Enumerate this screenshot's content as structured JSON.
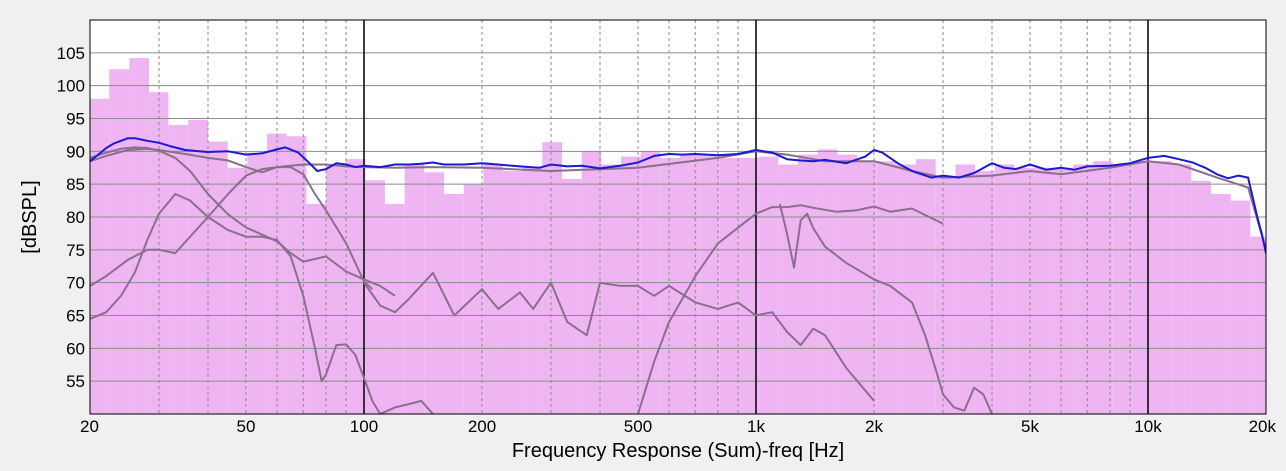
{
  "chart_data": {
    "type": "bar",
    "title": "",
    "xlabel": "Frequency Response (Sum)-freq [Hz]",
    "ylabel": "[dBSPL]",
    "xscale": "log",
    "xlim": [
      20,
      20000
    ],
    "ylim": [
      50,
      110
    ],
    "grid": true,
    "legend": "none",
    "x_ticks": [
      {
        "value": 20,
        "label": "20"
      },
      {
        "value": 50,
        "label": "50"
      },
      {
        "value": 100,
        "label": "100"
      },
      {
        "value": 200,
        "label": "200"
      },
      {
        "value": 500,
        "label": "500"
      },
      {
        "value": 1000,
        "label": "1k"
      },
      {
        "value": 2000,
        "label": "2k"
      },
      {
        "value": 5000,
        "label": "5k"
      },
      {
        "value": 10000,
        "label": "10k"
      },
      {
        "value": 20000,
        "label": "20k"
      }
    ],
    "y_ticks": [
      {
        "value": 55,
        "label": "55"
      },
      {
        "value": 60,
        "label": "60"
      },
      {
        "value": 65,
        "label": "65"
      },
      {
        "value": 70,
        "label": "70"
      },
      {
        "value": 75,
        "label": "75"
      },
      {
        "value": 80,
        "label": "80"
      },
      {
        "value": 85,
        "label": "85"
      },
      {
        "value": 90,
        "label": "90"
      },
      {
        "value": 95,
        "label": "95"
      },
      {
        "value": 100,
        "label": "100"
      },
      {
        "value": 105,
        "label": "105"
      }
    ],
    "colors": {
      "bars": "#efb5f3",
      "sum_line": "#1a1ad0",
      "component_lines": "#8a6f8c",
      "grid": "#8c8c8c",
      "decade_grid": "#000000",
      "plot_bg": "#ffffff",
      "frame_bg": "#f0f0f0"
    },
    "bars": {
      "x": [
        20,
        22.4,
        25.2,
        28.3,
        31.7,
        35.6,
        40,
        44.9,
        50.4,
        56.6,
        63.5,
        71.3,
        80,
        89.8,
        100.8,
        113.1,
        127,
        142.5,
        160,
        179.6,
        201.6,
        226.3,
        254,
        285.1,
        320,
        359.2,
        403.2,
        452.5,
        508,
        570.2,
        640,
        718.4,
        806.3,
        905.1,
        1016,
        1140,
        1280,
        1437,
        1613,
        1810,
        2032,
        2281,
        2560,
        2874,
        3226,
        3621,
        4064,
        4562,
        5120,
        5747,
        6451,
        7241,
        8127,
        9123,
        10240,
        11494,
        12902,
        14482,
        16255,
        18246
      ],
      "values": [
        98,
        102.5,
        104.2,
        99,
        94,
        94.8,
        91.5,
        87.5,
        89.8,
        92.7,
        92.3,
        82,
        88,
        88.8,
        85.6,
        82,
        88,
        86.8,
        83.5,
        85,
        88,
        87,
        87.7,
        91.4,
        85.8,
        90,
        88,
        89.2,
        90,
        89,
        89.5,
        89.6,
        89,
        89,
        89.2,
        88,
        89.5,
        90.3,
        89.5,
        88.6,
        88.5,
        88,
        88.8,
        86,
        88,
        87,
        88,
        87.5,
        87.5,
        87.5,
        88,
        88.5,
        88,
        88.5,
        88.5,
        88,
        85.5,
        83.5,
        82.5,
        77
      ]
    },
    "series": [
      {
        "x": [
          20,
          21,
          22,
          23,
          24,
          25,
          26,
          27,
          28,
          30,
          32,
          35,
          38,
          40,
          45,
          50,
          55,
          60,
          63,
          68,
          72,
          76,
          80,
          85,
          90,
          95,
          100,
          110,
          120,
          130,
          140,
          150,
          160,
          180,
          200,
          220,
          250,
          280,
          300,
          330,
          360,
          400,
          450,
          500,
          550,
          600,
          650,
          700,
          800,
          900,
          1000,
          1100,
          1200,
          1300,
          1400,
          1500,
          1700,
          1900,
          2000,
          2100,
          2300,
          2500,
          2800,
          3000,
          3300,
          3600,
          4000,
          4300,
          4600,
          5000,
          5500,
          6000,
          6500,
          7000,
          8000,
          9000,
          10000,
          11000,
          12000,
          13000,
          14000,
          15000,
          16000,
          17000,
          18000,
          18500,
          19000,
          19500,
          20000
        ],
        "values": [
          88.5,
          89.5,
          90.5,
          91.2,
          91.6,
          92,
          92,
          91.8,
          91.6,
          91.3,
          90.8,
          90.2,
          90,
          89.9,
          90,
          89.5,
          89.7,
          90.3,
          90.6,
          89.8,
          88.4,
          87,
          87.3,
          88.2,
          88,
          87.6,
          87.8,
          87.6,
          88,
          88,
          88.1,
          88.3,
          88,
          88,
          88.2,
          88,
          87.7,
          87.5,
          88,
          87.7,
          87.8,
          87.4,
          87.8,
          88.3,
          89.3,
          89.6,
          89.5,
          89.6,
          89.4,
          89.6,
          90.2,
          89.8,
          88.8,
          88.6,
          88.5,
          88.7,
          88.2,
          89.2,
          90.2,
          89.8,
          88.2,
          87,
          86,
          86.3,
          86,
          86.7,
          88.2,
          87.5,
          87.3,
          88,
          87.2,
          87.5,
          87.2,
          87.7,
          87.8,
          88.2,
          89,
          89.3,
          88.8,
          88.3,
          87.5,
          86.5,
          85.9,
          86.3,
          86,
          83,
          80,
          77.5,
          74.5
        ]
      },
      {
        "x": [
          20,
          22,
          25,
          28,
          30,
          35,
          40,
          45,
          50,
          55,
          60,
          70,
          80,
          90,
          100,
          120,
          150,
          200,
          300,
          500,
          800,
          1000,
          1200,
          1500,
          2000,
          2500,
          3000,
          4000,
          5000,
          6000,
          8000,
          10000,
          12000,
          15000,
          18000,
          20000
        ],
        "values": [
          88.5,
          89.3,
          90.2,
          90.4,
          90.2,
          89.6,
          89,
          88.6,
          87.6,
          86.8,
          87.6,
          88,
          88,
          87.7,
          87.6,
          87.5,
          87.6,
          87.5,
          87,
          87.5,
          89,
          90,
          89.5,
          88.5,
          88.5,
          87,
          86,
          86.3,
          87,
          86.5,
          87.5,
          88.5,
          88,
          86,
          84.5,
          75
        ]
      },
      {
        "x": [
          20,
          22,
          24,
          26,
          28,
          30,
          33,
          36,
          40,
          45,
          50,
          55,
          60,
          65,
          70,
          75,
          80,
          90,
          100,
          110,
          120
        ],
        "values": [
          89,
          89.8,
          90.4,
          90.6,
          90.5,
          90.1,
          89,
          87,
          83.5,
          80.4,
          78.4,
          77.3,
          76.3,
          74.5,
          73.2,
          73.6,
          74,
          71.7,
          70.5,
          69.5,
          68
        ]
      },
      {
        "x": [
          20,
          22,
          24,
          26,
          28,
          30,
          33,
          36,
          40,
          45,
          50,
          55,
          60,
          65,
          70,
          75,
          78,
          80,
          85,
          90,
          95,
          100,
          105,
          110
        ],
        "values": [
          64.5,
          65.5,
          68,
          71.5,
          76.5,
          80.5,
          83.5,
          82.5,
          80,
          78,
          77,
          77,
          76.5,
          74,
          68,
          60,
          55,
          56,
          60.5,
          60.6,
          59,
          55.5,
          52,
          50
        ]
      },
      {
        "x": [
          20,
          22,
          25,
          28,
          30,
          33,
          36,
          40,
          45,
          50,
          55,
          60,
          65,
          70,
          75,
          80,
          90,
          100,
          105
        ],
        "values": [
          69.5,
          71,
          73.5,
          75,
          75,
          74.5,
          77,
          80,
          83.5,
          86.3,
          87.3,
          87.6,
          87.6,
          86.5,
          83.5,
          81,
          76,
          70.2,
          69
        ]
      },
      {
        "x": [
          100,
          110,
          120,
          130,
          150,
          170,
          200,
          220,
          250,
          270,
          300,
          330,
          370,
          400,
          450,
          500,
          550,
          600,
          700,
          800,
          900,
          1000,
          1100,
          1200,
          1300,
          1400,
          1500,
          1700,
          2000
        ],
        "values": [
          70,
          66.5,
          65.5,
          67.5,
          71.5,
          65,
          69,
          66,
          68.5,
          66,
          70,
          64,
          62,
          70,
          69.5,
          69.5,
          68,
          69.5,
          67,
          66,
          67,
          65,
          65.5,
          62.5,
          60.5,
          63,
          62,
          57,
          52
        ]
      },
      {
        "x": [
          110,
          120,
          130,
          140,
          150
        ],
        "values": [
          50,
          51,
          51.5,
          52,
          50
        ]
      },
      {
        "x": [
          500,
          550,
          600,
          700,
          800,
          1000,
          1100,
          1200,
          1300,
          1400,
          1600,
          1800,
          2000,
          2200,
          2500,
          2700,
          3000
        ],
        "values": [
          50,
          58,
          64,
          71,
          76,
          80.5,
          81.5,
          81.5,
          81.8,
          81.4,
          80.8,
          81,
          81.6,
          80.8,
          81.3,
          80.3,
          79
        ]
      },
      {
        "x": [
          1150,
          1200,
          1250,
          1300,
          1350,
          1400,
          1500,
          1700,
          2000,
          2200,
          2500,
          2700,
          2900,
          3000,
          3200,
          3400,
          3600,
          3800,
          4000
        ],
        "values": [
          82,
          77.5,
          72.3,
          79.5,
          80.5,
          78.3,
          75.5,
          73,
          70.5,
          69.5,
          67,
          62,
          56,
          53,
          51,
          50.5,
          54,
          53,
          50
        ]
      }
    ]
  }
}
